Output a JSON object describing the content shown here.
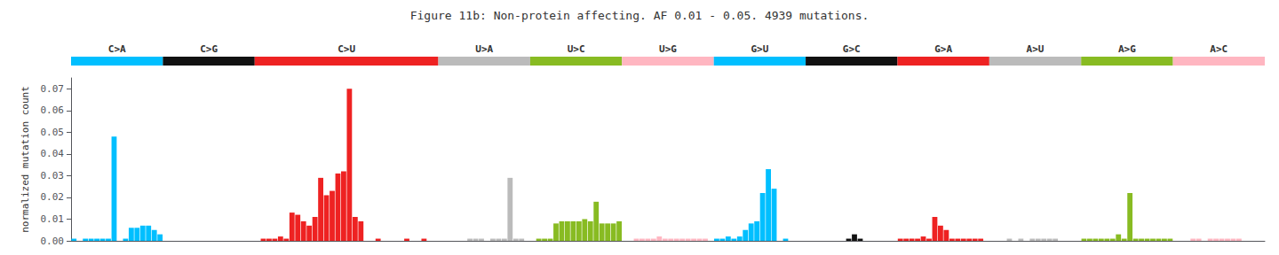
{
  "chart_data": {
    "type": "bar",
    "title": "Figure 11b: Non-protein affecting. AF 0.01 - 0.05. 4939 mutations.",
    "ylabel": "normalized mutation count",
    "ylim": [
      0,
      0.075
    ],
    "yticks": [
      {
        "value": 0,
        "label": "0.00"
      },
      0.01,
      0.02,
      0.03,
      0.04,
      0.05,
      0.06,
      0.07
    ],
    "grid": false,
    "tick_labels": "y",
    "groups": [
      {
        "name": "C>A",
        "color": "#00BFFF",
        "values": [
          0.001,
          0.0,
          0.001,
          0.001,
          0.001,
          0.001,
          0.001,
          0.048,
          0.0,
          0.001,
          0.006,
          0.006,
          0.007,
          0.007,
          0.005,
          0.003
        ]
      },
      {
        "name": "C>G",
        "color": "#111111",
        "values": [
          0.0,
          0.0,
          0.0,
          0.0,
          0.0,
          0.0,
          0.0,
          0.0,
          0.0,
          0.0,
          0.0,
          0.0,
          0.0,
          0.0,
          0.0,
          0.0
        ]
      },
      {
        "name": "C>U",
        "color": "#EE2222",
        "values": [
          0.0,
          0.001,
          0.001,
          0.001,
          0.002,
          0.001,
          0.013,
          0.012,
          0.009,
          0.007,
          0.011,
          0.029,
          0.021,
          0.023,
          0.031,
          0.032,
          0.07,
          0.011,
          0.009,
          0.0,
          0.0,
          0.001,
          0.0,
          0.0,
          0.0,
          0.0,
          0.001,
          0.0,
          0.0,
          0.001,
          0.0,
          0.0
        ]
      },
      {
        "name": "U>A",
        "color": "#BBBBBB",
        "values": [
          0.0,
          0.0,
          0.0,
          0.0,
          0.0,
          0.001,
          0.001,
          0.001,
          0.0,
          0.001,
          0.001,
          0.001,
          0.029,
          0.001,
          0.001,
          0.0
        ]
      },
      {
        "name": "U>C",
        "color": "#88BB22",
        "values": [
          0.0,
          0.001,
          0.001,
          0.001,
          0.008,
          0.009,
          0.009,
          0.009,
          0.009,
          0.01,
          0.009,
          0.018,
          0.008,
          0.008,
          0.008,
          0.009
        ]
      },
      {
        "name": "U>G",
        "color": "#FFB6C1",
        "values": [
          0.0,
          0.0,
          0.001,
          0.001,
          0.001,
          0.001,
          0.002,
          0.001,
          0.001,
          0.001,
          0.001,
          0.001,
          0.001,
          0.001,
          0.001,
          0.0
        ]
      },
      {
        "name": "G>U",
        "color": "#00BFFF",
        "values": [
          0.001,
          0.001,
          0.002,
          0.001,
          0.002,
          0.005,
          0.008,
          0.009,
          0.022,
          0.033,
          0.024,
          0.0,
          0.001,
          0.0,
          0.0,
          0.0
        ]
      },
      {
        "name": "G>C",
        "color": "#111111",
        "values": [
          0.0,
          0.0,
          0.0,
          0.0,
          0.0,
          0.0,
          0.0,
          0.001,
          0.003,
          0.001,
          0.0,
          0.0,
          0.0,
          0.0,
          0.0,
          0.0
        ]
      },
      {
        "name": "G>A",
        "color": "#EE2222",
        "values": [
          0.001,
          0.001,
          0.001,
          0.001,
          0.002,
          0.001,
          0.011,
          0.007,
          0.005,
          0.001,
          0.001,
          0.001,
          0.001,
          0.001,
          0.001,
          0.0
        ]
      },
      {
        "name": "A>U",
        "color": "#BBBBBB",
        "values": [
          0.0,
          0.0,
          0.0,
          0.001,
          0.0,
          0.001,
          0.0,
          0.001,
          0.001,
          0.001,
          0.001,
          0.001,
          0.0,
          0.0,
          0.0,
          0.0
        ]
      },
      {
        "name": "A>G",
        "color": "#88BB22",
        "values": [
          0.001,
          0.001,
          0.001,
          0.001,
          0.001,
          0.001,
          0.003,
          0.001,
          0.022,
          0.001,
          0.001,
          0.001,
          0.001,
          0.001,
          0.001,
          0.001
        ]
      },
      {
        "name": "A>C",
        "color": "#FFB6C1",
        "values": [
          0.0,
          0.0,
          0.0,
          0.001,
          0.001,
          0.0,
          0.001,
          0.001,
          0.001,
          0.001,
          0.001,
          0.001,
          0.0,
          0.0,
          0.0,
          0.0
        ]
      }
    ]
  }
}
